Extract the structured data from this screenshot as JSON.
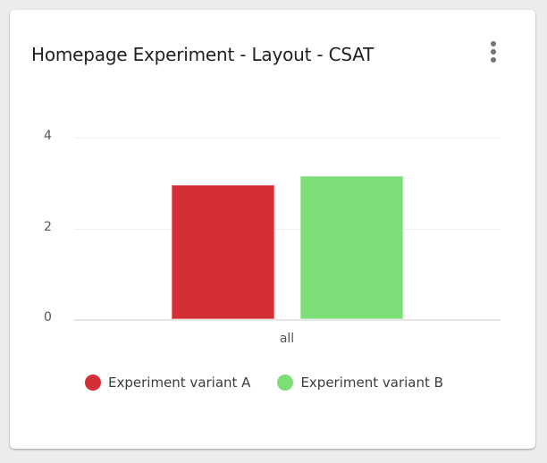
{
  "card": {
    "title": "Homepage Experiment - Layout - CSAT",
    "menu_icon": "more-vert-icon"
  },
  "chart_data": {
    "type": "bar",
    "title": "Homepage Experiment - Layout - CSAT",
    "categories": [
      "all"
    ],
    "series": [
      {
        "name": "Experiment variant A",
        "values": [
          2.95
        ],
        "color": "#d32f35"
      },
      {
        "name": "Experiment variant B",
        "values": [
          3.15
        ],
        "color": "#7ddd77"
      }
    ],
    "xlabel": "",
    "ylabel": "",
    "ylim": [
      0,
      4
    ],
    "yticks": [
      "0",
      "2",
      "4"
    ],
    "grid": true,
    "legend_position": "bottom"
  }
}
